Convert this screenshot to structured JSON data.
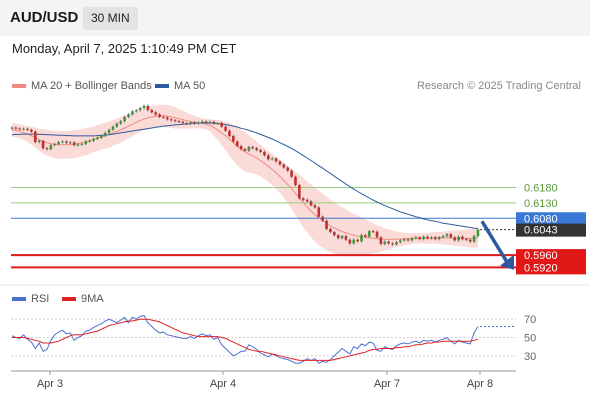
{
  "header": {
    "pair": "AUD/USD",
    "timeframe": "30 MIN"
  },
  "datetime": "Monday, April 7, 2025 1:10:49 PM CET",
  "legend": {
    "ma20": {
      "label": "MA 20 + Bollinger Bands",
      "color": "#f08a80"
    },
    "ma50": {
      "label": "MA 50",
      "color": "#2c5aa0"
    },
    "rsi": {
      "label": "RSI",
      "color": "#4a70d0"
    },
    "ma9": {
      "label": "9MA",
      "color": "#e02020"
    }
  },
  "credit": "Research © 2025 Trading Central",
  "chart_data": {
    "type": "candlestick",
    "x_labels": [
      "Apr 3",
      "Apr 4",
      "Apr 7",
      "Apr 8"
    ],
    "current_price": {
      "value": 0.6043,
      "label": "0.6043",
      "color": "#333333"
    },
    "levels": [
      {
        "label": "0.6180",
        "value": 0.618,
        "kind": "resistance",
        "color": "#9acd80"
      },
      {
        "label": "0.6130",
        "value": 0.613,
        "kind": "resistance",
        "color": "#9acd80"
      },
      {
        "label": "0.6080",
        "value": 0.608,
        "kind": "pivot",
        "color": "#3a78d6"
      },
      {
        "label": "0.5960",
        "value": 0.596,
        "kind": "support",
        "color": "#e01818"
      },
      {
        "label": "0.5920",
        "value": 0.592,
        "kind": "support",
        "color": "#e01818"
      }
    ],
    "forecast_direction": "down",
    "close": [
      0.6375,
      0.6372,
      0.637,
      0.6371,
      0.6368,
      0.6362,
      0.6328,
      0.6332,
      0.6308,
      0.6305,
      0.6318,
      0.6322,
      0.6328,
      0.633,
      0.6326,
      0.6327,
      0.6318,
      0.632,
      0.6322,
      0.633,
      0.6332,
      0.6338,
      0.6342,
      0.6348,
      0.6358,
      0.6368,
      0.6378,
      0.6388,
      0.6396,
      0.641,
      0.6418,
      0.6428,
      0.6432,
      0.6439,
      0.6446,
      0.6432,
      0.6425,
      0.6418,
      0.641,
      0.6408,
      0.6402,
      0.6399,
      0.6396,
      0.6394,
      0.639,
      0.6388,
      0.6392,
      0.6388,
      0.6392,
      0.6395,
      0.6392,
      0.6394,
      0.6388,
      0.639,
      0.6378,
      0.6365,
      0.6348,
      0.633,
      0.6315,
      0.6305,
      0.63,
      0.6312,
      0.6308,
      0.6302,
      0.6296,
      0.6285,
      0.6272,
      0.6275,
      0.6265,
      0.6255,
      0.6245,
      0.6235,
      0.6215,
      0.6188,
      0.6145,
      0.614,
      0.6135,
      0.6122,
      0.6115,
      0.6085,
      0.6072,
      0.6045,
      0.6035,
      0.6025,
      0.6015,
      0.6022,
      0.601,
      0.5998,
      0.601,
      0.6005,
      0.6025,
      0.602,
      0.6038,
      0.6036,
      0.6018,
      0.5996,
      0.6004,
      0.5998,
      0.5995,
      0.6002,
      0.6008,
      0.6011,
      0.6008,
      0.6015,
      0.6018,
      0.6012,
      0.602,
      0.6015,
      0.6018,
      0.6012,
      0.6018,
      0.6022,
      0.6028,
      0.6018,
      0.6008,
      0.602,
      0.6012,
      0.601,
      0.6004,
      0.6022,
      0.6043
    ],
    "ma20": [
      0.6368,
      0.6366,
      0.6363,
      0.6359,
      0.6354,
      0.6349,
      0.6342,
      0.6336,
      0.633,
      0.6326,
      0.6323,
      0.632,
      0.6319,
      0.6319,
      0.6319,
      0.632,
      0.6321,
      0.6323,
      0.6326,
      0.6329,
      0.6333,
      0.6337,
      0.6341,
      0.6345,
      0.6349,
      0.6353,
      0.6358,
      0.6363,
      0.6368,
      0.6374,
      0.638,
      0.6386,
      0.6392,
      0.6398,
      0.6403,
      0.6407,
      0.641,
      0.6412,
      0.6414,
      0.6414,
      0.6412,
      0.641,
      0.6407,
      0.6404,
      0.6401,
      0.6398,
      0.6395,
      0.6393,
      0.6391,
      0.6389,
      0.6386,
      0.6382,
      0.6375,
      0.6367,
      0.6358,
      0.6348,
      0.6337,
      0.6326,
      0.6315,
      0.6305,
      0.6296,
      0.6289,
      0.6283,
      0.6276,
      0.6268,
      0.6259,
      0.6249,
      0.6239,
      0.6228,
      0.6216,
      0.6203,
      0.619,
      0.6176,
      0.6161,
      0.6146,
      0.6131,
      0.6117,
      0.6104,
      0.6092,
      0.6081,
      0.6072,
      0.6063,
      0.6055,
      0.6048,
      0.6042,
      0.6037,
      0.6032,
      0.6028,
      0.6025,
      0.6022,
      0.602,
      0.6018,
      0.6016,
      0.6015,
      0.6013,
      0.6012,
      0.6012,
      0.6011,
      0.6011,
      0.6012,
      0.6012,
      0.6013,
      0.6013,
      0.6014,
      0.6014,
      0.6015,
      0.6015,
      0.6015,
      0.6015,
      0.6016,
      0.6016,
      0.6016,
      0.6016,
      0.6016,
      0.6015,
      0.6015,
      0.6015,
      0.6015,
      0.6014,
      0.6015,
      0.6017
    ],
    "bb_upper": [
      0.639,
      0.6388,
      0.6386,
      0.6383,
      0.638,
      0.6378,
      0.6375,
      0.6372,
      0.637,
      0.6368,
      0.6366,
      0.6365,
      0.6364,
      0.6364,
      0.6364,
      0.6365,
      0.6366,
      0.6368,
      0.637,
      0.6373,
      0.6376,
      0.6379,
      0.6383,
      0.6387,
      0.6391,
      0.6396,
      0.64,
      0.6405,
      0.641,
      0.6415,
      0.642,
      0.6425,
      0.643,
      0.6435,
      0.6439,
      0.6443,
      0.6446,
      0.6448,
      0.6449,
      0.645,
      0.6449,
      0.6446,
      0.6442,
      0.6436,
      0.643,
      0.6424,
      0.6418,
      0.6413,
      0.6409,
      0.6406,
      0.6403,
      0.6402,
      0.6401,
      0.64,
      0.6398,
      0.6395,
      0.639,
      0.6384,
      0.6377,
      0.6369,
      0.636,
      0.635,
      0.634,
      0.633,
      0.632,
      0.631,
      0.63,
      0.629,
      0.628,
      0.627,
      0.626,
      0.625,
      0.6242,
      0.6232,
      0.6222,
      0.6212,
      0.62,
      0.619,
      0.618,
      0.617,
      0.616,
      0.615,
      0.614,
      0.6132,
      0.6124,
      0.6116,
      0.6108,
      0.61,
      0.6094,
      0.6088,
      0.6082,
      0.6076,
      0.607,
      0.6064,
      0.6058,
      0.6053,
      0.6048,
      0.6044,
      0.604,
      0.6037,
      0.6035,
      0.6033,
      0.6032,
      0.6031,
      0.6031,
      0.6031,
      0.6032,
      0.6033,
      0.6034,
      0.6035,
      0.6036,
      0.6037,
      0.6038,
      0.6039,
      0.604,
      0.6041,
      0.6042,
      0.6043,
      0.6044,
      0.6046,
      0.6048
    ],
    "bb_lower": [
      0.6346,
      0.6344,
      0.634,
      0.6335,
      0.6328,
      0.632,
      0.6309,
      0.63,
      0.629,
      0.6284,
      0.628,
      0.6275,
      0.6274,
      0.6274,
      0.6274,
      0.6275,
      0.6276,
      0.6278,
      0.6282,
      0.6285,
      0.629,
      0.6295,
      0.6299,
      0.6303,
      0.6307,
      0.631,
      0.6316,
      0.6321,
      0.6326,
      0.6333,
      0.634,
      0.6347,
      0.6354,
      0.6361,
      0.6367,
      0.6371,
      0.6374,
      0.6376,
      0.6379,
      0.6378,
      0.6375,
      0.6374,
      0.6372,
      0.6372,
      0.6372,
      0.6372,
      0.6372,
      0.6373,
      0.6373,
      0.6372,
      0.6369,
      0.6362,
      0.6349,
      0.6334,
      0.6318,
      0.6301,
      0.6284,
      0.6268,
      0.6253,
      0.6241,
      0.6232,
      0.6228,
      0.6226,
      0.6222,
      0.6216,
      0.6208,
      0.6198,
      0.6188,
      0.6176,
      0.6162,
      0.6146,
      0.613,
      0.611,
      0.609,
      0.607,
      0.605,
      0.6034,
      0.6018,
      0.6004,
      0.5992,
      0.5984,
      0.5976,
      0.597,
      0.5964,
      0.596,
      0.5958,
      0.5956,
      0.5956,
      0.5956,
      0.5956,
      0.5958,
      0.596,
      0.5962,
      0.5966,
      0.5968,
      0.5971,
      0.5976,
      0.5978,
      0.5982,
      0.5987,
      0.5989,
      0.5993,
      0.5994,
      0.5997,
      0.5997,
      0.5999,
      0.5998,
      0.5997,
      0.5996,
      0.5997,
      0.5996,
      0.5995,
      0.5994,
      0.5993,
      0.599,
      0.5989,
      0.5988,
      0.5987,
      0.5984,
      0.5984,
      0.5986
    ],
    "ma50": [
      0.6352,
      0.6353,
      0.6353,
      0.6354,
      0.6354,
      0.6354,
      0.6354,
      0.6353,
      0.6353,
      0.6352,
      0.6352,
      0.6351,
      0.635,
      0.635,
      0.6349,
      0.6349,
      0.6348,
      0.6348,
      0.6348,
      0.6348,
      0.6348,
      0.6348,
      0.6349,
      0.635,
      0.6351,
      0.6352,
      0.6354,
      0.6356,
      0.6358,
      0.636,
      0.6362,
      0.6364,
      0.6366,
      0.6368,
      0.637,
      0.6372,
      0.6374,
      0.6376,
      0.6378,
      0.638,
      0.6381,
      0.6383,
      0.6384,
      0.6385,
      0.6386,
      0.6387,
      0.6388,
      0.6389,
      0.639,
      0.639,
      0.639,
      0.639,
      0.6389,
      0.6388,
      0.6387,
      0.6385,
      0.6383,
      0.638,
      0.6377,
      0.6373,
      0.637,
      0.6366,
      0.6362,
      0.6358,
      0.6353,
      0.6348,
      0.6343,
      0.6338,
      0.6332,
      0.6326,
      0.632,
      0.6314,
      0.6307,
      0.63,
      0.6292,
      0.6284,
      0.6276,
      0.6268,
      0.626,
      0.6251,
      0.6243,
      0.6234,
      0.6226,
      0.6217,
      0.6208,
      0.62,
      0.6191,
      0.6183,
      0.6175,
      0.6167,
      0.616,
      0.6153,
      0.6146,
      0.6139,
      0.6133,
      0.6127,
      0.6121,
      0.6116,
      0.6111,
      0.6106,
      0.6101,
      0.6097,
      0.6093,
      0.6089,
      0.6085,
      0.6082,
      0.6078,
      0.6075,
      0.6072,
      0.607,
      0.6067,
      0.6064,
      0.6062,
      0.606,
      0.6058,
      0.6056,
      0.6054,
      0.6052,
      0.605,
      0.6048,
      0.6047
    ],
    "rsi": {
      "ticks": [
        70,
        50,
        30
      ],
      "ylim": [
        20,
        80
      ],
      "values": [
        52,
        50,
        49,
        53,
        48,
        45,
        38,
        44,
        35,
        37,
        47,
        53,
        56,
        58,
        54,
        55,
        47,
        50,
        52,
        57,
        58,
        61,
        63,
        65,
        68,
        70,
        68,
        66,
        69,
        72,
        66,
        72,
        70,
        73,
        74,
        66,
        62,
        58,
        55,
        56,
        53,
        52,
        51,
        50,
        49,
        49,
        51,
        49,
        52,
        54,
        52,
        53,
        48,
        50,
        42,
        38,
        34,
        30,
        32,
        35,
        35,
        42,
        40,
        37,
        33,
        31,
        29,
        32,
        30,
        28,
        27,
        26,
        24,
        22,
        22,
        24,
        27,
        25,
        27,
        22,
        24,
        23,
        26,
        30,
        34,
        38,
        35,
        32,
        40,
        38,
        43,
        41,
        45,
        44,
        36,
        35,
        40,
        38,
        37,
        41,
        43,
        44,
        43,
        45,
        46,
        44,
        47,
        46,
        47,
        45,
        47,
        48,
        50,
        46,
        43,
        47,
        45,
        44,
        43,
        55,
        62
      ],
      "ma9": [
        50,
        50,
        50,
        50,
        49,
        48,
        47,
        46,
        44,
        44,
        44,
        45,
        46,
        48,
        50,
        52,
        53,
        53,
        53,
        54,
        55,
        56,
        57,
        59,
        61,
        63,
        64,
        65,
        66,
        67,
        68,
        68,
        69,
        70,
        70,
        70,
        69,
        68,
        67,
        65,
        63,
        61,
        59,
        57,
        55,
        54,
        53,
        52,
        51,
        51,
        51,
        51,
        51,
        51,
        50,
        49,
        47,
        45,
        43,
        41,
        39,
        37,
        36,
        35,
        35,
        34,
        33,
        32,
        31,
        30,
        29,
        28,
        27,
        26,
        25,
        25,
        25,
        25,
        25,
        25,
        25,
        25,
        25,
        26,
        27,
        28,
        29,
        30,
        31,
        32,
        33,
        34,
        36,
        37,
        37,
        38,
        38,
        38,
        38,
        39,
        39,
        40,
        40,
        41,
        42,
        42,
        43,
        44,
        44,
        45,
        45,
        46,
        46,
        46,
        46,
        46,
        46,
        46,
        46,
        47,
        48
      ]
    }
  }
}
